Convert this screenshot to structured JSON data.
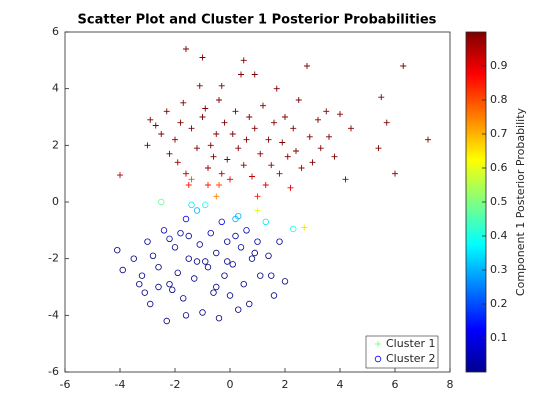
{
  "chart_data": {
    "type": "scatter",
    "title": "Scatter Plot and Cluster 1 Posterior Probabilities",
    "xlim": [
      -6,
      8
    ],
    "xticks": [
      -6,
      -4,
      -2,
      0,
      2,
      4,
      6,
      8
    ],
    "ylim": [
      -6,
      6
    ],
    "yticks": [
      -6,
      -4,
      -2,
      0,
      2,
      4,
      6
    ],
    "colormap": "jet",
    "clim": [
      0,
      1
    ],
    "colorbar_ticks": [
      0.1,
      0.2,
      0.3,
      0.4,
      0.5,
      0.6,
      0.7,
      0.8,
      0.9
    ],
    "colorbar_label": "Component 1 Posterior Probability",
    "legend": "lower right",
    "series": [
      {
        "name": "Cluster 1",
        "marker": "+",
        "color": "#80ff80",
        "x": [
          -4.0,
          -3.0,
          -2.9,
          -2.7,
          -2.5,
          -2.3,
          -2.0,
          -1.9,
          -1.7,
          -1.6,
          -1.5,
          -1.4,
          -1.2,
          -1.1,
          -1.0,
          -0.9,
          -0.8,
          -0.8,
          -0.7,
          -0.6,
          -0.5,
          -0.5,
          -0.4,
          -0.3,
          -0.2,
          -0.1,
          0.0,
          0.1,
          0.2,
          0.3,
          0.4,
          0.5,
          0.6,
          0.7,
          0.8,
          0.9,
          1.0,
          1.1,
          1.2,
          1.3,
          1.4,
          1.5,
          1.6,
          1.7,
          1.8,
          1.9,
          2.0,
          2.1,
          2.2,
          2.3,
          2.4,
          2.5,
          2.6,
          2.7,
          2.8,
          2.9,
          3.0,
          3.2,
          3.3,
          3.5,
          3.6,
          3.8,
          4.0,
          4.2,
          4.4,
          5.4,
          5.5,
          5.7,
          6.0,
          6.3,
          7.2,
          -1.0,
          -1.6,
          0.5,
          -2.2,
          -0.3,
          1.0,
          -1.8,
          0.9,
          -1.4,
          -0.4
        ],
        "y": [
          0.95,
          2.0,
          2.9,
          2.7,
          2.4,
          3.2,
          2.2,
          1.4,
          3.5,
          1.0,
          0.6,
          2.6,
          1.9,
          4.1,
          3.0,
          3.3,
          1.2,
          0.6,
          2.0,
          1.6,
          2.4,
          0.2,
          3.6,
          1.0,
          2.8,
          1.5,
          0.8,
          2.4,
          3.2,
          1.9,
          4.5,
          1.3,
          2.2,
          3.0,
          0.9,
          2.6,
          -0.3,
          1.7,
          3.4,
          0.6,
          2.2,
          1.3,
          2.8,
          4.0,
          1.0,
          2.1,
          3.0,
          1.6,
          0.5,
          2.6,
          1.8,
          3.6,
          1.2,
          -0.9,
          4.8,
          2.3,
          1.4,
          2.9,
          1.9,
          3.2,
          2.3,
          1.6,
          3.1,
          0.8,
          2.6,
          1.9,
          3.7,
          2.8,
          1.0,
          4.8,
          2.2,
          5.1,
          5.4,
          5.0,
          1.7,
          4.1,
          0.2,
          2.8,
          4.5,
          0.8,
          0.6
        ],
        "values": [
          0.95,
          1,
          1,
          1,
          1,
          1,
          1,
          0.98,
          1,
          0.95,
          0.85,
          1,
          1,
          1,
          1,
          1,
          0.97,
          0.85,
          1,
          1,
          1,
          0.75,
          1,
          0.95,
          1,
          1,
          0.9,
          1,
          1,
          1,
          1,
          0.98,
          1,
          1,
          0.93,
          1,
          0.6,
          1,
          1,
          0.9,
          1,
          0.98,
          1,
          1,
          0.95,
          1,
          1,
          1,
          0.9,
          1,
          1,
          1,
          0.97,
          0.65,
          1,
          1,
          1,
          1,
          1,
          1,
          1,
          1,
          1,
          0.98,
          1,
          1,
          1,
          1,
          1,
          1,
          1,
          1,
          1,
          1,
          1,
          1,
          0.85,
          1,
          1,
          0.8,
          0.8
        ]
      },
      {
        "name": "Cluster 2",
        "marker": "o",
        "color": "#0000ff",
        "x": [
          -4.1,
          -3.9,
          -3.5,
          -3.2,
          -3.1,
          -3.0,
          -2.9,
          -2.6,
          -2.5,
          -2.4,
          -2.3,
          -2.2,
          -2.0,
          -1.9,
          -1.8,
          -1.7,
          -1.6,
          -1.5,
          -1.4,
          -1.3,
          -1.2,
          -1.1,
          -1.0,
          -0.9,
          -0.8,
          -0.7,
          -0.6,
          -0.5,
          -0.4,
          -0.3,
          -0.2,
          -0.1,
          0.0,
          0.1,
          0.2,
          0.3,
          0.4,
          0.5,
          0.6,
          0.7,
          0.8,
          1.0,
          1.1,
          1.3,
          1.4,
          1.6,
          1.8,
          2.0,
          2.3,
          -2.8,
          -2.1,
          -1.5,
          -0.9,
          -0.5,
          0.2,
          0.9,
          1.5,
          -2.6,
          -3.3,
          -1.6,
          0.3,
          -2.2,
          -1.2,
          -0.1
        ],
        "y": [
          -1.7,
          -2.4,
          -2.0,
          -2.6,
          -3.2,
          -1.4,
          -3.6,
          -2.3,
          0.0,
          -1.0,
          -4.2,
          -2.9,
          -1.6,
          -2.5,
          -1.1,
          -3.4,
          -0.6,
          -2.0,
          -0.1,
          -2.7,
          -0.3,
          -1.5,
          -3.9,
          -0.1,
          -2.3,
          -1.1,
          -3.2,
          -1.8,
          -4.1,
          -0.7,
          -2.6,
          -1.4,
          -3.3,
          -2.2,
          -0.6,
          -0.5,
          -1.6,
          -2.9,
          -1.0,
          -3.6,
          -2.0,
          -1.4,
          -2.6,
          -0.7,
          -1.9,
          -3.3,
          -1.4,
          -2.8,
          -0.95,
          -1.9,
          -3.1,
          -1.2,
          -2.1,
          -3.0,
          -1.2,
          -1.8,
          -2.6,
          -3.0,
          -2.9,
          -4.0,
          -3.8,
          -1.3,
          -2.1,
          -2.1
        ],
        "values": [
          0,
          0,
          0,
          0,
          0,
          0.02,
          0,
          0,
          0.48,
          0.05,
          0,
          0,
          0.02,
          0,
          0.05,
          0,
          0.1,
          0,
          0.35,
          0,
          0.3,
          0.02,
          0,
          0.4,
          0,
          0.05,
          0,
          0,
          0,
          0.1,
          0,
          0.02,
          0,
          0,
          0.3,
          0.3,
          0.02,
          0,
          0.06,
          0,
          0,
          0.03,
          0,
          0.35,
          0,
          0,
          0.02,
          0,
          0.4,
          0,
          0,
          0.02,
          0,
          0,
          0.03,
          0,
          0,
          0,
          0,
          0,
          0,
          0.03,
          0,
          0
        ]
      }
    ]
  }
}
